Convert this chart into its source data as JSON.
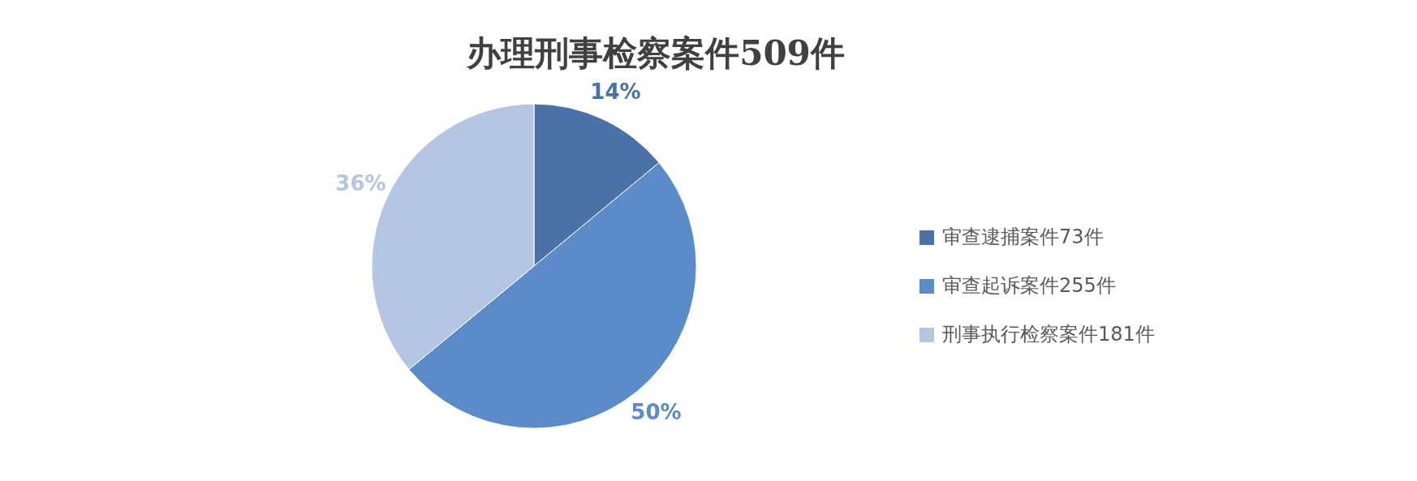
{
  "chart_data": {
    "type": "pie",
    "title": "办理刑事检察案件509件",
    "categories": [
      "审查逮捕案件73件",
      "审查起诉案件255件",
      "刑事执行检察案件181件"
    ],
    "values": [
      14,
      50,
      36
    ],
    "colors": [
      "#4a72a6",
      "#5b8bc9",
      "#b4c6e4"
    ],
    "value_labels": [
      "14%",
      "50%",
      "36%"
    ],
    "legend": "right"
  }
}
